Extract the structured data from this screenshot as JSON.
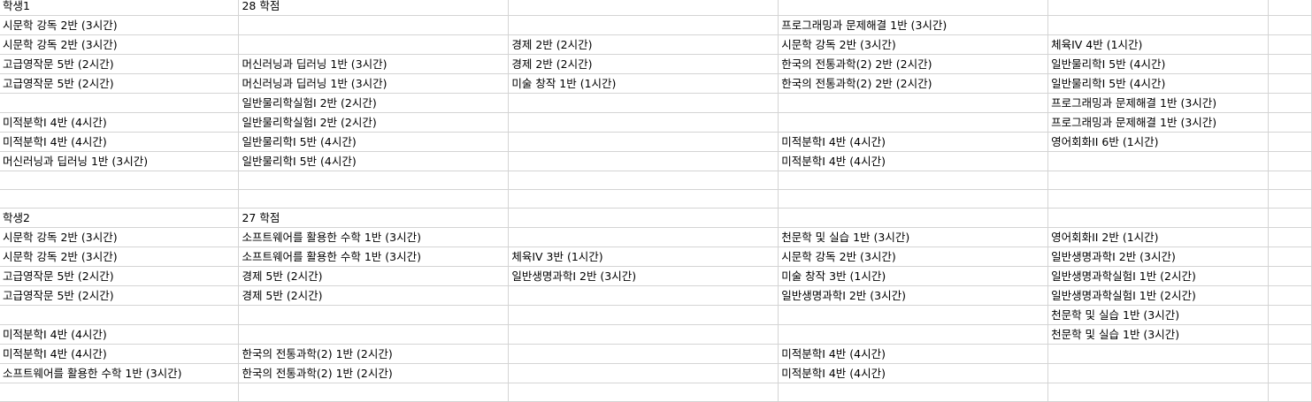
{
  "sheet": {
    "rows": [
      [
        "학생1",
        "28 학점",
        "",
        "",
        "",
        ""
      ],
      [
        "시문학 강독 2반 (3시간)",
        "",
        "",
        "프로그래밍과 문제해결 1반 (3시간)",
        "",
        ""
      ],
      [
        "시문학 강독 2반 (3시간)",
        "",
        "경제 2반 (2시간)",
        "시문학 강독 2반 (3시간)",
        "체육IV 4반 (1시간)",
        ""
      ],
      [
        "고급영작문 5반 (2시간)",
        "머신러닝과 딥러닝 1반 (3시간)",
        "경제 2반 (2시간)",
        "한국의 전통과학(2) 2반 (2시간)",
        "일반물리학Ⅰ 5반 (4시간)",
        ""
      ],
      [
        "고급영작문 5반 (2시간)",
        "머신러닝과 딥러닝 1반 (3시간)",
        "미술 창작 1반 (1시간)",
        "한국의 전통과학(2) 2반 (2시간)",
        "일반물리학Ⅰ 5반 (4시간)",
        ""
      ],
      [
        "",
        "일반물리학실험Ⅰ 2반 (2시간)",
        "",
        "",
        "프로그래밍과 문제해결 1반 (3시간)",
        ""
      ],
      [
        "미적분학Ⅰ 4반 (4시간)",
        "일반물리학실험Ⅰ 2반 (2시간)",
        "",
        "",
        "프로그래밍과 문제해결 1반 (3시간)",
        ""
      ],
      [
        "미적분학Ⅰ 4반 (4시간)",
        "일반물리학Ⅰ 5반 (4시간)",
        "",
        "미적분학Ⅰ 4반 (4시간)",
        "영어회화II 6반 (1시간)",
        ""
      ],
      [
        "머신러닝과 딥러닝 1반 (3시간)",
        "일반물리학Ⅰ 5반 (4시간)",
        "",
        "미적분학Ⅰ 4반 (4시간)",
        "",
        ""
      ],
      [
        "",
        "",
        "",
        "",
        "",
        ""
      ],
      [
        "",
        "",
        "",
        "",
        "",
        ""
      ],
      [
        "학생2",
        "27 학점",
        "",
        "",
        "",
        ""
      ],
      [
        "시문학 강독 2반 (3시간)",
        "소프트웨어를 활용한 수학 1반 (3시간)",
        "",
        "천문학 및 실습 1반 (3시간)",
        "영어회화II 2반 (1시간)",
        ""
      ],
      [
        "시문학 강독 2반 (3시간)",
        "소프트웨어를 활용한 수학 1반 (3시간)",
        "체육IV 3반 (1시간)",
        "시문학 강독 2반 (3시간)",
        "일반생명과학Ⅰ 2반 (3시간)",
        ""
      ],
      [
        "고급영작문 5반 (2시간)",
        "경제 5반 (2시간)",
        "일반생명과학Ⅰ 2반 (3시간)",
        "미술 창작 3반 (1시간)",
        "일반생명과학실험Ⅰ 1반 (2시간)",
        ""
      ],
      [
        "고급영작문 5반 (2시간)",
        "경제 5반 (2시간)",
        "",
        "일반생명과학Ⅰ 2반 (3시간)",
        "일반생명과학실험Ⅰ 1반 (2시간)",
        ""
      ],
      [
        "",
        "",
        "",
        "",
        "천문학 및 실습 1반 (3시간)",
        ""
      ],
      [
        "미적분학Ⅰ 4반 (4시간)",
        "",
        "",
        "",
        "천문학 및 실습 1반 (3시간)",
        ""
      ],
      [
        "미적분학Ⅰ 4반 (4시간)",
        "한국의 전통과학(2) 1반 (2시간)",
        "",
        "미적분학Ⅰ 4반 (4시간)",
        "",
        ""
      ],
      [
        "소프트웨어를 활용한 수학 1반 (3시간)",
        "한국의 전통과학(2) 1반 (2시간)",
        "",
        "미적분학Ⅰ 4반 (4시간)",
        "",
        ""
      ],
      [
        "",
        "",
        "",
        "",
        "",
        ""
      ]
    ]
  }
}
